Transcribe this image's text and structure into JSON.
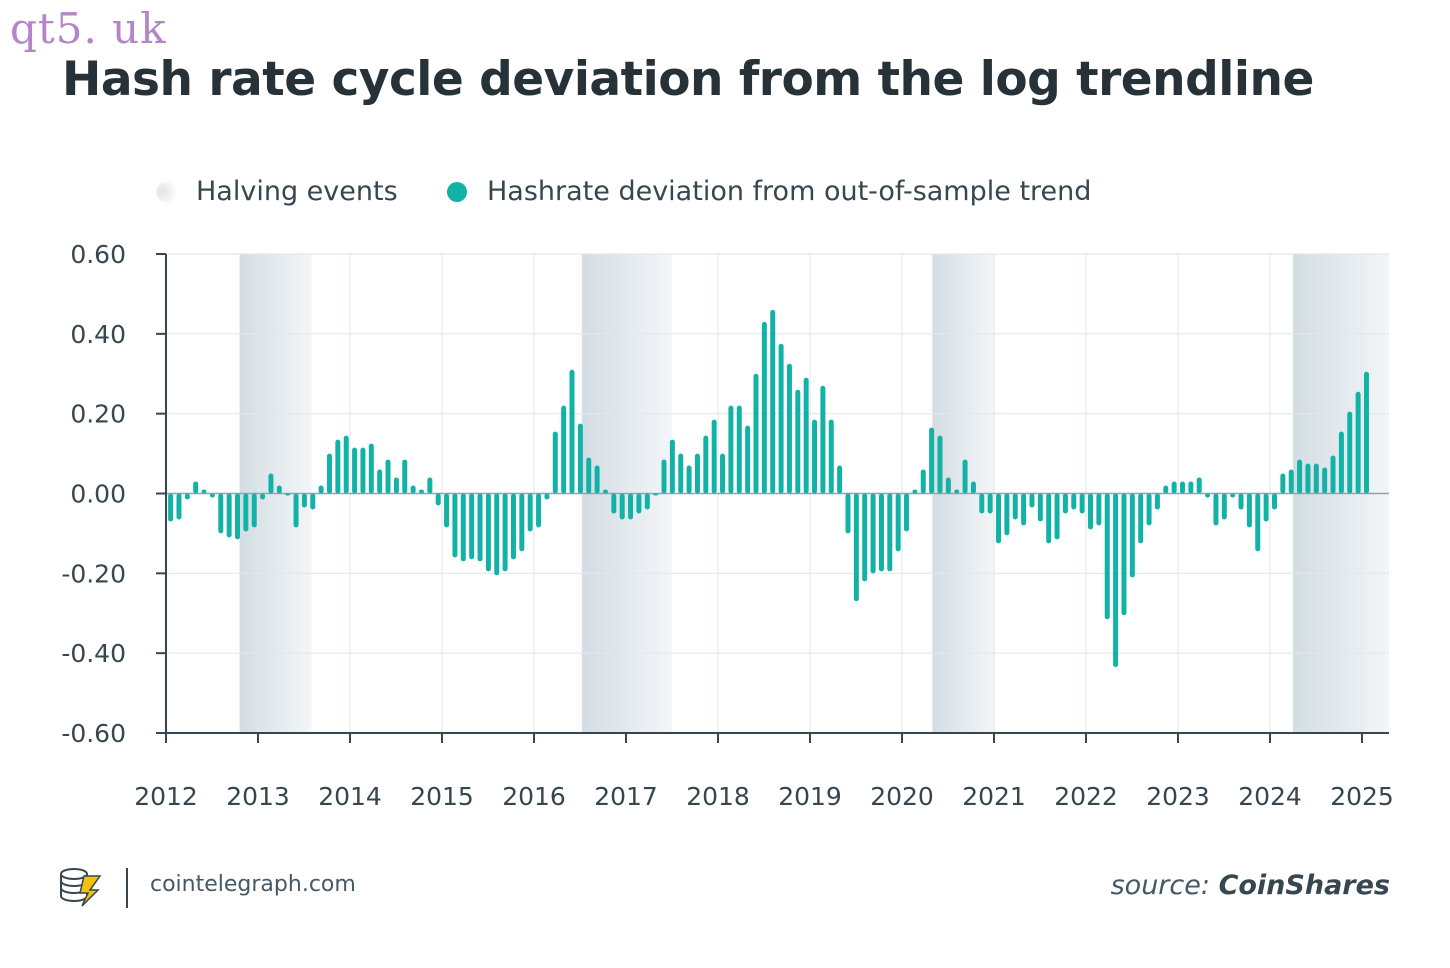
{
  "watermark": "qt5. uk",
  "site": "cointelegraph.com",
  "source": {
    "label": "source:",
    "name": "CoinShares"
  },
  "colors": {
    "bar": "#12b2a7",
    "halving_band_start": "#d3dde3",
    "halving_band_end": "#f3f6f8",
    "text": "#263238",
    "axis": "#37474f"
  },
  "chart_data": {
    "type": "bar",
    "title": "Hash rate cycle deviation from the log trendline",
    "xlabel": "",
    "ylabel": "",
    "ylim": [
      -0.6,
      0.6
    ],
    "yticks": [
      0.6,
      0.4,
      0.2,
      0.0,
      -0.2,
      -0.4,
      -0.6
    ],
    "ytick_labels": [
      "0.60",
      "0.40",
      "0.20",
      "0.00",
      "-0.20",
      "-0.40",
      "-0.60"
    ],
    "xlim": [
      2012.0,
      2025.3
    ],
    "xticks": [
      2012,
      2013,
      2014,
      2015,
      2016,
      2017,
      2018,
      2019,
      2020,
      2021,
      2022,
      2023,
      2024,
      2025
    ],
    "xtick_labels": [
      "2012",
      "2013",
      "2014",
      "2015",
      "2016",
      "2017",
      "2018",
      "2019",
      "2020",
      "2021",
      "2022",
      "2023",
      "2024",
      "2025"
    ],
    "grid": true,
    "legend_position": "top",
    "legend": [
      {
        "label": "Halving events",
        "kind": "band"
      },
      {
        "label": "Hashrate deviation from out-of-sample trend",
        "kind": "bar"
      }
    ],
    "halving_bands": [
      {
        "start": 2012.8,
        "end": 2013.58
      },
      {
        "start": 2016.52,
        "end": 2017.5
      },
      {
        "start": 2020.33,
        "end": 2021.0
      },
      {
        "start": 2024.25,
        "end": 2025.3
      }
    ],
    "series": [
      {
        "x_start": 2012.05,
        "x_step": 0.0909,
        "values": [
          -0.07,
          -0.065,
          -0.015,
          0.03,
          0.01,
          -0.01,
          -0.1,
          -0.11,
          -0.115,
          -0.095,
          -0.085,
          -0.015,
          0.05,
          0.02,
          -0.005,
          -0.085,
          -0.035,
          -0.04,
          0.02,
          0.1,
          0.135,
          0.145,
          0.115,
          0.115,
          0.125,
          0.06,
          0.085,
          0.04,
          0.085,
          0.02,
          0.01,
          0.04,
          -0.03,
          -0.085,
          -0.16,
          -0.17,
          -0.165,
          -0.17,
          -0.195,
          -0.205,
          -0.195,
          -0.165,
          -0.145,
          -0.095,
          -0.085,
          -0.015,
          0.155,
          0.22,
          0.31,
          0.175,
          0.09,
          0.07,
          0.01,
          -0.05,
          -0.065,
          -0.065,
          -0.05,
          -0.04,
          -0.005,
          0.085,
          0.135,
          0.1,
          0.07,
          0.1,
          0.145,
          0.185,
          0.1,
          0.22,
          0.22,
          0.17,
          0.3,
          0.43,
          0.46,
          0.375,
          0.325,
          0.26,
          0.29,
          0.185,
          0.27,
          0.185,
          0.07,
          -0.1,
          -0.27,
          -0.22,
          -0.2,
          -0.195,
          -0.195,
          -0.145,
          -0.095,
          0.01,
          0.06,
          0.165,
          0.145,
          0.04,
          0.01,
          0.085,
          0.03,
          -0.05,
          -0.05,
          -0.125,
          -0.105,
          -0.065,
          -0.08,
          -0.035,
          -0.07,
          -0.125,
          -0.115,
          -0.05,
          -0.04,
          -0.05,
          -0.09,
          -0.08,
          -0.315,
          -0.435,
          -0.305,
          -0.21,
          -0.125,
          -0.08,
          -0.04,
          0.02,
          0.03,
          0.03,
          0.03,
          0.04,
          -0.01,
          -0.08,
          -0.065,
          -0.01,
          -0.04,
          -0.085,
          -0.145,
          -0.07,
          -0.04,
          0.05,
          0.06,
          0.085,
          0.075,
          0.075,
          0.065,
          0.095,
          0.155,
          0.205,
          0.255,
          0.305
        ]
      }
    ]
  }
}
